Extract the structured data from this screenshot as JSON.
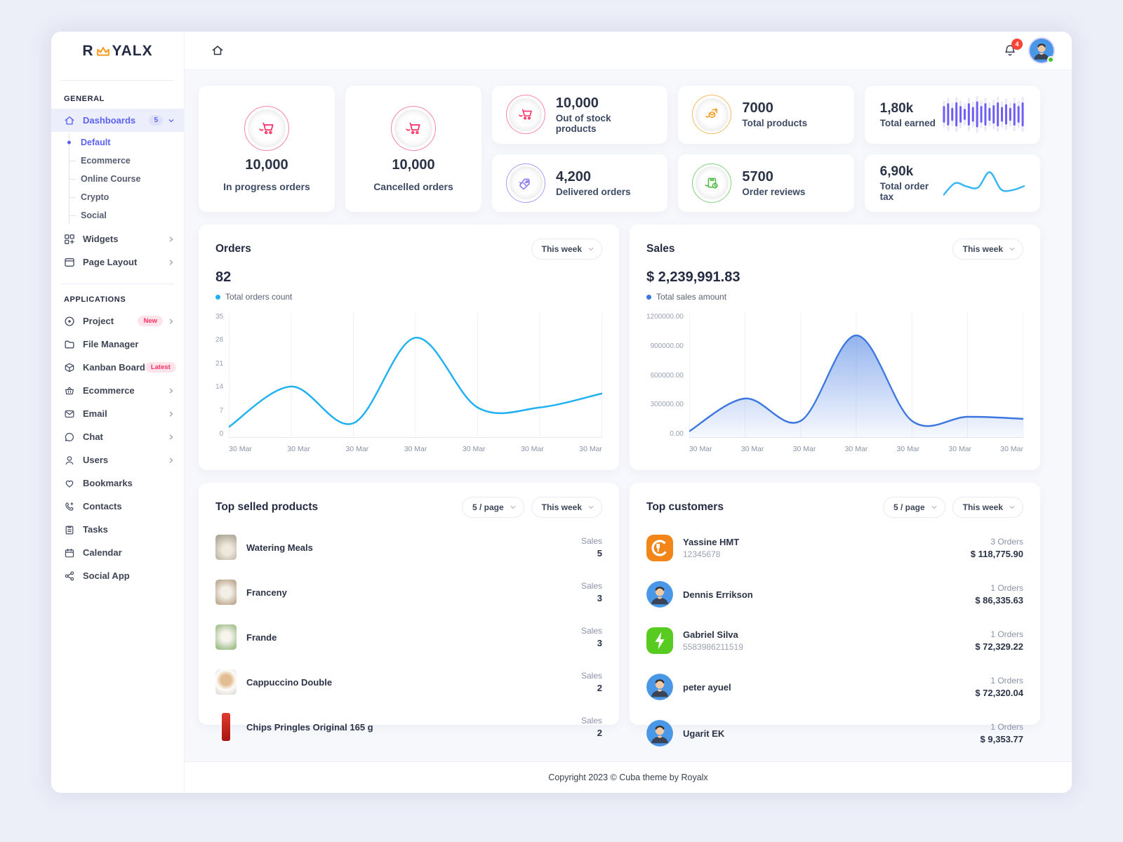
{
  "brand": {
    "name_left": "R",
    "name_right": "YALX"
  },
  "header": {
    "notification_count": "4"
  },
  "sidebar": {
    "general_title": "GENERAL",
    "applications_title": "APPLICATIONS",
    "dashboards": {
      "label": "Dashboards",
      "badge": "5"
    },
    "dashboard_children": [
      {
        "label": "Default"
      },
      {
        "label": "Ecommerce"
      },
      {
        "label": "Online Course"
      },
      {
        "label": "Crypto"
      },
      {
        "label": "Social"
      }
    ],
    "items": [
      {
        "label": "Widgets"
      },
      {
        "label": "Page Layout"
      },
      {
        "label": "Project",
        "badge": "New"
      },
      {
        "label": "File Manager"
      },
      {
        "label": "Kanban Board",
        "badge": "Latest"
      },
      {
        "label": "Ecommerce"
      },
      {
        "label": "Email"
      },
      {
        "label": "Chat"
      },
      {
        "label": "Users"
      },
      {
        "label": "Bookmarks"
      },
      {
        "label": "Contacts"
      },
      {
        "label": "Tasks"
      },
      {
        "label": "Calendar"
      },
      {
        "label": "Social App"
      }
    ]
  },
  "stats": {
    "in_progress": {
      "value": "10,000",
      "label": "In progress orders"
    },
    "cancelled": {
      "value": "10,000",
      "label": "Cancelled orders"
    },
    "out_of_stock": {
      "value": "10,000",
      "label": "Out of stock products"
    },
    "delivered": {
      "value": "4,200",
      "label": "Delivered orders"
    },
    "total_products": {
      "value": "7000",
      "label": "Total products"
    },
    "order_reviews": {
      "value": "5700",
      "label": "Order reviews"
    },
    "total_earned": {
      "value": "1,80k",
      "label": "Total earned"
    },
    "total_order_tax": {
      "value": "6,90k",
      "label": "Total order tax"
    }
  },
  "orders_panel": {
    "title": "Orders",
    "period": "This week",
    "total": "82",
    "legend": "Total orders count"
  },
  "sales_panel": {
    "title": "Sales",
    "period": "This week",
    "total": "$ 2,239,991.83",
    "legend": "Total sales amount"
  },
  "top_products": {
    "title": "Top selled products",
    "per_page": "5 / page",
    "period": "This week",
    "sales_label": "Sales",
    "items": [
      {
        "name": "Watering Meals",
        "sales": "5"
      },
      {
        "name": "Franceny",
        "sales": "3"
      },
      {
        "name": "Frande",
        "sales": "3"
      },
      {
        "name": "Cappuccino Double",
        "sales": "2"
      },
      {
        "name": "Chips Pringles Original 165 g",
        "sales": "2"
      }
    ]
  },
  "top_customers": {
    "title": "Top customers",
    "per_page": "5 / page",
    "period": "This week",
    "items": [
      {
        "name": "Yassine HMT",
        "id": "12345678",
        "orders": "3 Orders",
        "amount": "$ 118,775.90"
      },
      {
        "name": "Dennis Errikson",
        "id": "",
        "orders": "1 Orders",
        "amount": "$ 86,335.63"
      },
      {
        "name": "Gabriel Silva",
        "id": "5583986211519",
        "orders": "1 Orders",
        "amount": "$ 72,329.22"
      },
      {
        "name": "peter ayuel",
        "id": "",
        "orders": "1 Orders",
        "amount": "$ 72,320.04"
      },
      {
        "name": "Ugarit EK",
        "id": "",
        "orders": "1 Orders",
        "amount": "$ 9,353.77"
      }
    ]
  },
  "footer": {
    "copyright": "Copyright 2023 © Cuba theme by Royalx"
  },
  "colors": {
    "primary": "#5C61F2",
    "secondary_pink": "#F73164",
    "orange": "#F8A02C",
    "green": "#54BA4A",
    "purple_icon": "#8778F3",
    "orders_line": "#1FB1F2",
    "sales_line": "#3C76E0",
    "earned_bars": "#6E5EF6",
    "tax_line": "#38B6F5",
    "badge_red": "#FB4438",
    "online_green": "#47C12A"
  },
  "chart_data": [
    {
      "name": "orders",
      "type": "line",
      "title": "Orders",
      "legend": "Total orders count",
      "x": [
        "30 Mar",
        "30 Mar",
        "30 Mar",
        "30 Mar",
        "30 Mar",
        "30 Mar",
        "30 Mar"
      ],
      "values": [
        3,
        14.5,
        4,
        28.5,
        8.5,
        8.5,
        12.5
      ],
      "ylim": [
        0,
        35
      ],
      "yticks": [
        "35",
        "28",
        "21",
        "14",
        "7",
        "0"
      ],
      "color": "#1FB1F2",
      "grid": "vertical",
      "legend_position": "top-left"
    },
    {
      "name": "sales",
      "type": "area",
      "title": "Sales",
      "legend": "Total sales amount",
      "x": [
        "30 Mar",
        "30 Mar",
        "30 Mar",
        "30 Mar",
        "30 Mar",
        "30 Mar",
        "30 Mar"
      ],
      "values": [
        60000,
        380000,
        160000,
        1000000,
        160000,
        200000,
        180000
      ],
      "ylim": [
        0,
        1200000
      ],
      "yticks": [
        "1200000.00",
        "900000.00",
        "600000.00",
        "300000.00",
        "0.00"
      ],
      "color": "#3C76E0",
      "grid": "vertical",
      "legend_position": "top-left"
    },
    {
      "name": "earned_spark",
      "type": "bar",
      "values": [
        9,
        12,
        7,
        13,
        9,
        6,
        12,
        8,
        14,
        9,
        12,
        7,
        10,
        13,
        8,
        11,
        7,
        12,
        9,
        13
      ],
      "track_values": [
        15,
        18,
        13,
        19,
        15,
        12,
        18,
        14,
        20,
        15,
        18,
        13,
        16,
        19,
        14,
        17,
        13,
        18,
        15,
        19
      ],
      "ylim": [
        0,
        22
      ],
      "color": "#6E5EF6",
      "track_color": "#E9E7F8"
    },
    {
      "name": "tax_spark",
      "type": "line",
      "values": [
        2,
        5.5,
        4.5,
        4.2,
        8.8,
        3.6,
        3.4,
        4.6
      ],
      "ylim": [
        0,
        11
      ],
      "color": "#38B6F5"
    }
  ]
}
